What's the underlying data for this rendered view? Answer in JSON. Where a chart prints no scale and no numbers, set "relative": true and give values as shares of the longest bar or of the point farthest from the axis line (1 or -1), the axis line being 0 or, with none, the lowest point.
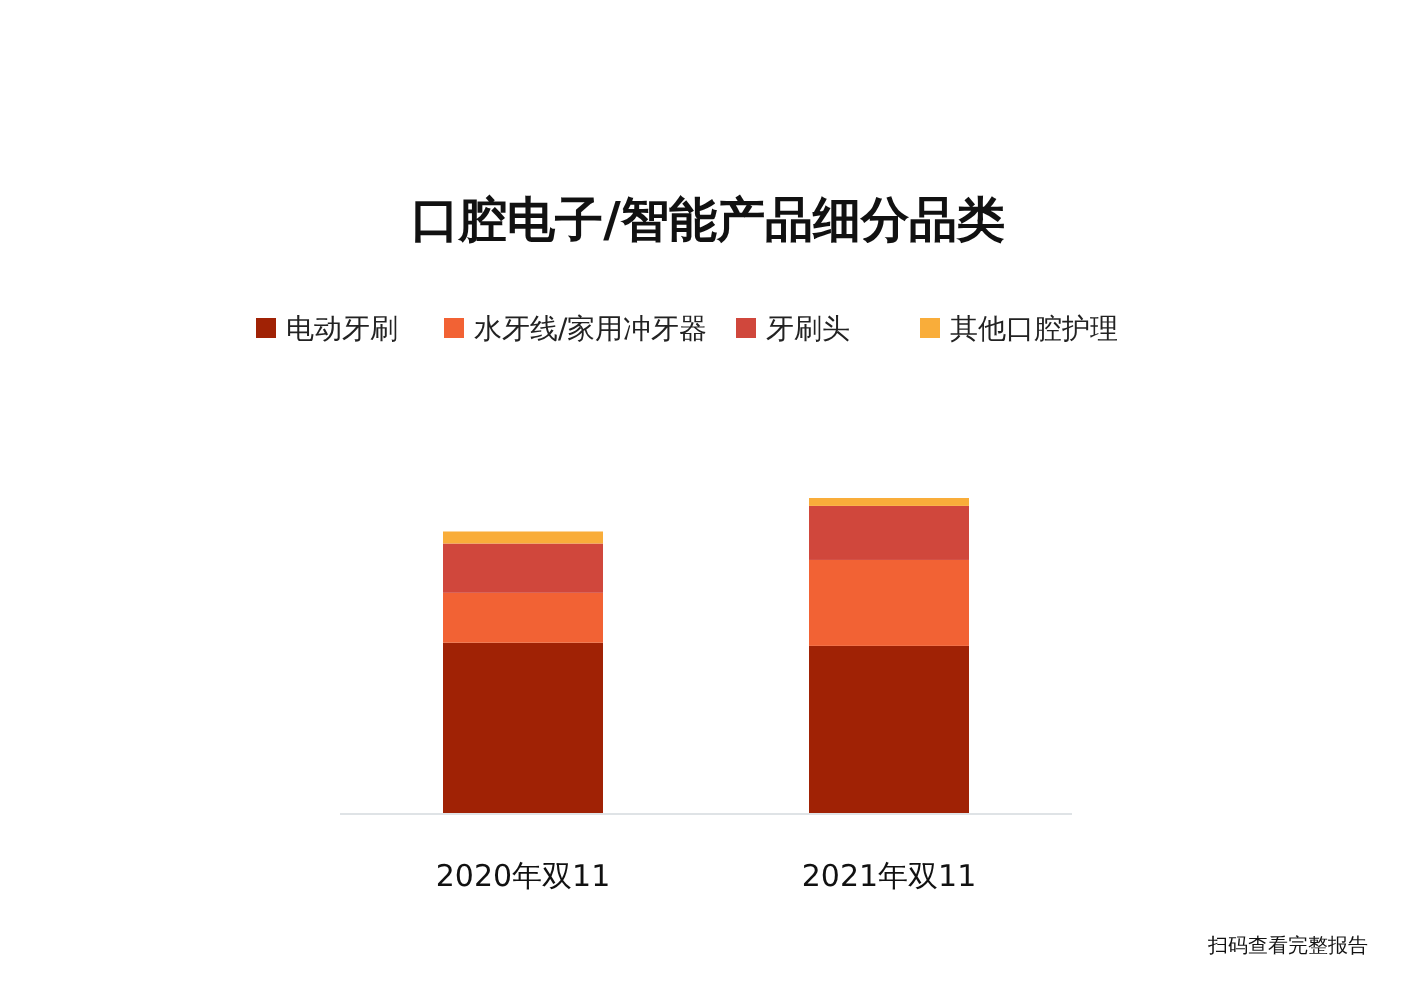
{
  "chart_data": {
    "type": "bar",
    "title": "口腔电子/智能产品细分品类",
    "categories": [
      "2020年双11",
      "2021年双11"
    ],
    "stacked": true,
    "relative": true,
    "legend": "top",
    "series": [
      {
        "name": "电动牙刷",
        "color": "#a02205",
        "values": [
          0.542,
          0.532
        ]
      },
      {
        "name": "水牙线/家用冲牙器",
        "color": "#f26234",
        "values": [
          0.158,
          0.272
        ]
      },
      {
        "name": "牙刷头",
        "color": "#d0473c",
        "values": [
          0.156,
          0.171
        ]
      },
      {
        "name": "其他口腔护理",
        "color": "#f9ad3a",
        "values": [
          0.038,
          0.025
        ]
      }
    ],
    "annotations": [
      "扫码查看完整报告"
    ]
  }
}
